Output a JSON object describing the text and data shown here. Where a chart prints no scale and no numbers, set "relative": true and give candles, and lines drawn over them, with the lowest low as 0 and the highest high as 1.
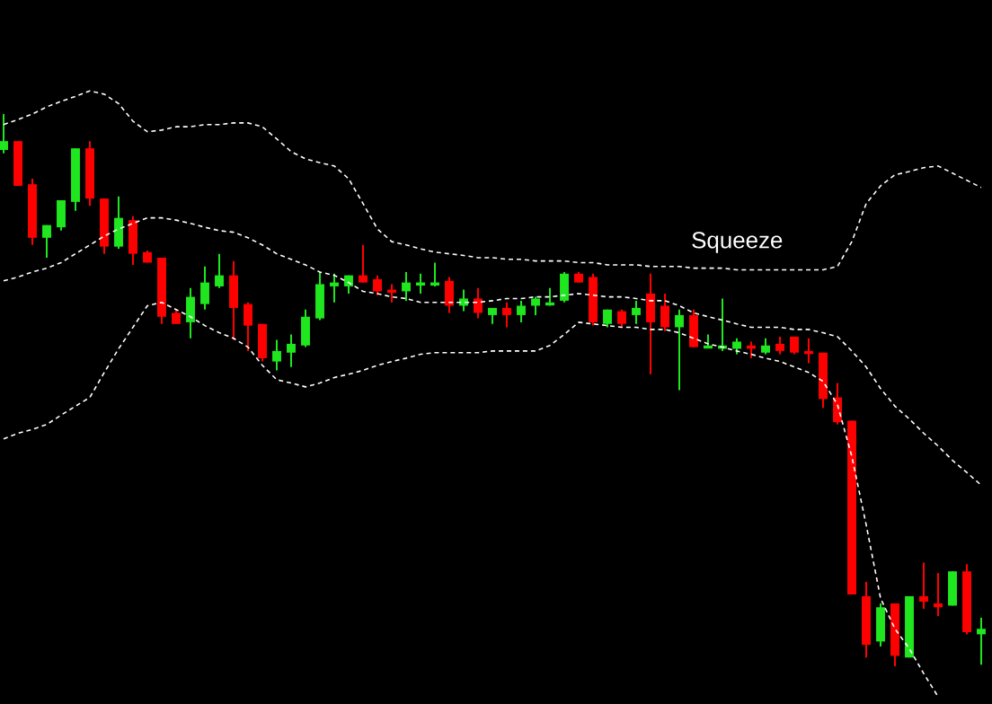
{
  "chart_data": {
    "type": "candlestick",
    "relative": true,
    "categories": [
      null,
      null,
      null,
      null,
      null,
      null,
      null,
      null,
      null,
      null,
      null,
      null,
      null,
      null,
      null,
      null,
      null,
      null,
      null,
      null,
      null,
      null,
      null,
      null,
      null,
      null,
      null,
      null,
      null,
      null,
      null,
      null,
      null,
      null,
      null,
      null,
      null,
      null,
      null,
      null,
      null,
      null,
      null,
      null,
      null,
      null,
      null,
      null,
      null,
      null,
      null,
      null,
      null,
      null,
      null,
      null,
      null,
      null,
      null,
      null,
      null,
      null,
      null,
      null,
      null,
      null,
      null,
      null,
      null
    ],
    "ohlc": [
      [
        0.935,
        1.0,
        0.929,
        0.951
      ],
      [
        0.951,
        0.951,
        0.87,
        0.87
      ],
      [
        0.873,
        0.883,
        0.763,
        0.776
      ],
      [
        0.776,
        0.799,
        0.74,
        0.799
      ],
      [
        0.795,
        0.844,
        0.789,
        0.844
      ],
      [
        0.841,
        0.938,
        0.825,
        0.938
      ],
      [
        0.938,
        0.951,
        0.834,
        0.847
      ],
      [
        0.847,
        0.847,
        0.747,
        0.76
      ],
      [
        0.76,
        0.851,
        0.756,
        0.812
      ],
      [
        0.808,
        0.815,
        0.727,
        0.747
      ],
      [
        0.75,
        0.753,
        0.731,
        0.731
      ],
      [
        0.74,
        0.74,
        0.62,
        0.633
      ],
      [
        0.64,
        0.646,
        0.62,
        0.62
      ],
      [
        0.623,
        0.685,
        0.594,
        0.669
      ],
      [
        0.656,
        0.724,
        0.646,
        0.695
      ],
      [
        0.688,
        0.747,
        0.685,
        0.708
      ],
      [
        0.708,
        0.734,
        0.591,
        0.649
      ],
      [
        0.656,
        0.659,
        0.571,
        0.617
      ],
      [
        0.62,
        0.62,
        0.552,
        0.558
      ],
      [
        0.552,
        0.591,
        0.536,
        0.571
      ],
      [
        0.568,
        0.601,
        0.542,
        0.584
      ],
      [
        0.581,
        0.646,
        0.578,
        0.633
      ],
      [
        0.63,
        0.714,
        0.627,
        0.692
      ],
      [
        0.688,
        0.711,
        0.659,
        0.695
      ],
      [
        0.688,
        0.708,
        0.675,
        0.708
      ],
      [
        0.708,
        0.763,
        0.695,
        0.695
      ],
      [
        0.701,
        0.708,
        0.672,
        0.679
      ],
      [
        0.682,
        0.692,
        0.659,
        0.679
      ],
      [
        0.679,
        0.714,
        0.662,
        0.695
      ],
      [
        0.692,
        0.711,
        0.675,
        0.695
      ],
      [
        0.692,
        0.731,
        0.688,
        0.695
      ],
      [
        0.698,
        0.705,
        0.64,
        0.653
      ],
      [
        0.653,
        0.682,
        0.643,
        0.666
      ],
      [
        0.666,
        0.685,
        0.63,
        0.64
      ],
      [
        0.636,
        0.649,
        0.62,
        0.649
      ],
      [
        0.649,
        0.659,
        0.614,
        0.636
      ],
      [
        0.636,
        0.662,
        0.623,
        0.653
      ],
      [
        0.653,
        0.669,
        0.636,
        0.666
      ],
      [
        0.656,
        0.685,
        0.653,
        0.659
      ],
      [
        0.662,
        0.714,
        0.659,
        0.711
      ],
      [
        0.711,
        0.714,
        0.695,
        0.695
      ],
      [
        0.705,
        0.711,
        0.617,
        0.623
      ],
      [
        0.62,
        0.646,
        0.614,
        0.646
      ],
      [
        0.643,
        0.646,
        0.614,
        0.62
      ],
      [
        0.636,
        0.662,
        0.62,
        0.649
      ],
      [
        0.675,
        0.711,
        0.529,
        0.623
      ],
      [
        0.653,
        0.675,
        0.607,
        0.614
      ],
      [
        0.614,
        0.646,
        0.5,
        0.636
      ],
      [
        0.636,
        0.646,
        0.578,
        0.578
      ],
      [
        0.578,
        0.601,
        0.578,
        0.581
      ],
      [
        0.575,
        0.666,
        0.571,
        0.581
      ],
      [
        0.575,
        0.594,
        0.565,
        0.588
      ],
      [
        0.581,
        0.588,
        0.558,
        0.575
      ],
      [
        0.568,
        0.594,
        0.565,
        0.581
      ],
      [
        0.584,
        0.597,
        0.565,
        0.571
      ],
      [
        0.597,
        0.597,
        0.565,
        0.568
      ],
      [
        0.571,
        0.594,
        0.549,
        0.568
      ],
      [
        0.568,
        0.568,
        0.468,
        0.484
      ],
      [
        0.487,
        0.513,
        0.438,
        0.442
      ],
      [
        0.445,
        0.445,
        0.13,
        0.13
      ],
      [
        0.127,
        0.153,
        0.016,
        0.039
      ],
      [
        0.045,
        0.114,
        0.036,
        0.107
      ],
      [
        0.114,
        0.114,
        0.0,
        0.019
      ],
      [
        0.016,
        0.127,
        0.016,
        0.127
      ],
      [
        0.127,
        0.188,
        0.104,
        0.117
      ],
      [
        0.114,
        0.169,
        0.091,
        0.107
      ],
      [
        0.11,
        0.172,
        0.11,
        0.172
      ],
      [
        0.172,
        0.185,
        0.058,
        0.062
      ],
      [
        0.058,
        0.088,
        0.003,
        0.068
      ]
    ],
    "colors": [
      "#1fe61f",
      "#ff0000",
      "#ff0000",
      "#1fe61f",
      "#1fe61f",
      "#1fe61f",
      "#ff0000",
      "#ff0000",
      "#1fe61f",
      "#ff0000",
      "#ff0000",
      "#ff0000",
      "#ff0000",
      "#1fe61f",
      "#1fe61f",
      "#1fe61f",
      "#ff0000",
      "#ff0000",
      "#ff0000",
      "#1fe61f",
      "#1fe61f",
      "#1fe61f",
      "#1fe61f",
      "#1fe61f",
      "#1fe61f",
      "#ff0000",
      "#ff0000",
      "#ff0000",
      "#1fe61f",
      "#1fe61f",
      "#1fe61f",
      "#ff0000",
      "#1fe61f",
      "#ff0000",
      "#1fe61f",
      "#ff0000",
      "#1fe61f",
      "#1fe61f",
      "#1fe61f",
      "#1fe61f",
      "#ff0000",
      "#ff0000",
      "#1fe61f",
      "#ff0000",
      "#1fe61f",
      "#ff0000",
      "#ff0000",
      "#1fe61f",
      "#ff0000",
      "#1fe61f",
      "#1fe61f",
      "#1fe61f",
      "#ff0000",
      "#1fe61f",
      "#ff0000",
      "#ff0000",
      "#ff0000",
      "#ff0000",
      "#ff0000",
      "#ff0000",
      "#ff0000",
      "#1fe61f",
      "#ff0000",
      "#1fe61f",
      "#ff0000",
      "#ff0000",
      "#1fe61f",
      "#ff0000",
      "#1fe61f"
    ],
    "series": [
      {
        "type": "line",
        "color": "#ffffff",
        "line_style": "dashed",
        "values": [
          0.981,
          0.99,
          1.0,
          1.013,
          1.023,
          1.032,
          1.042,
          1.036,
          1.019,
          0.987,
          0.968,
          0.971,
          0.977,
          0.977,
          0.981,
          0.981,
          0.984,
          0.984,
          0.977,
          0.955,
          0.932,
          0.919,
          0.912,
          0.906,
          0.883,
          0.838,
          0.792,
          0.769,
          0.763,
          0.756,
          0.75,
          0.747,
          0.744,
          0.74,
          0.74,
          0.737,
          0.737,
          0.734,
          0.734,
          0.734,
          0.731,
          0.731,
          0.727,
          0.727,
          0.727,
          0.724,
          0.724,
          0.724,
          0.721,
          0.721,
          0.721,
          0.718,
          0.718,
          0.718,
          0.718,
          0.718,
          0.718,
          0.718,
          0.724,
          0.769,
          0.838,
          0.87,
          0.89,
          0.896,
          0.903,
          0.906,
          0.893,
          0.88,
          0.867
        ]
      },
      {
        "type": "line",
        "color": "#ffffff",
        "line_style": "dashed",
        "values": [
          0.698,
          0.705,
          0.714,
          0.721,
          0.731,
          0.747,
          0.763,
          0.779,
          0.792,
          0.802,
          0.812,
          0.812,
          0.808,
          0.802,
          0.795,
          0.789,
          0.786,
          0.776,
          0.763,
          0.747,
          0.737,
          0.727,
          0.714,
          0.708,
          0.695,
          0.679,
          0.675,
          0.669,
          0.666,
          0.659,
          0.659,
          0.659,
          0.659,
          0.659,
          0.662,
          0.666,
          0.666,
          0.669,
          0.669,
          0.672,
          0.675,
          0.672,
          0.669,
          0.669,
          0.666,
          0.662,
          0.662,
          0.653,
          0.64,
          0.633,
          0.627,
          0.62,
          0.614,
          0.614,
          0.614,
          0.61,
          0.61,
          0.604,
          0.597,
          0.571,
          0.542,
          0.503,
          0.471,
          0.448,
          0.422,
          0.399,
          0.373,
          0.351,
          0.328
        ]
      },
      {
        "type": "line",
        "color": "#ffffff",
        "line_style": "dashed",
        "values": [
          0.412,
          0.422,
          0.429,
          0.438,
          0.455,
          0.471,
          0.487,
          0.532,
          0.575,
          0.614,
          0.653,
          0.659,
          0.646,
          0.633,
          0.617,
          0.604,
          0.594,
          0.578,
          0.545,
          0.519,
          0.513,
          0.506,
          0.513,
          0.523,
          0.529,
          0.536,
          0.545,
          0.552,
          0.558,
          0.565,
          0.568,
          0.568,
          0.568,
          0.568,
          0.571,
          0.571,
          0.571,
          0.571,
          0.581,
          0.601,
          0.623,
          0.62,
          0.617,
          0.614,
          0.614,
          0.61,
          0.61,
          0.604,
          0.594,
          0.584,
          0.578,
          0.571,
          0.565,
          0.558,
          0.552,
          0.542,
          0.532,
          0.516,
          0.474,
          0.38,
          0.256,
          0.123,
          0.068,
          0.032,
          -0.013,
          -0.055,
          null,
          null,
          null
        ]
      }
    ],
    "annotations": [
      "Squeeze"
    ]
  }
}
